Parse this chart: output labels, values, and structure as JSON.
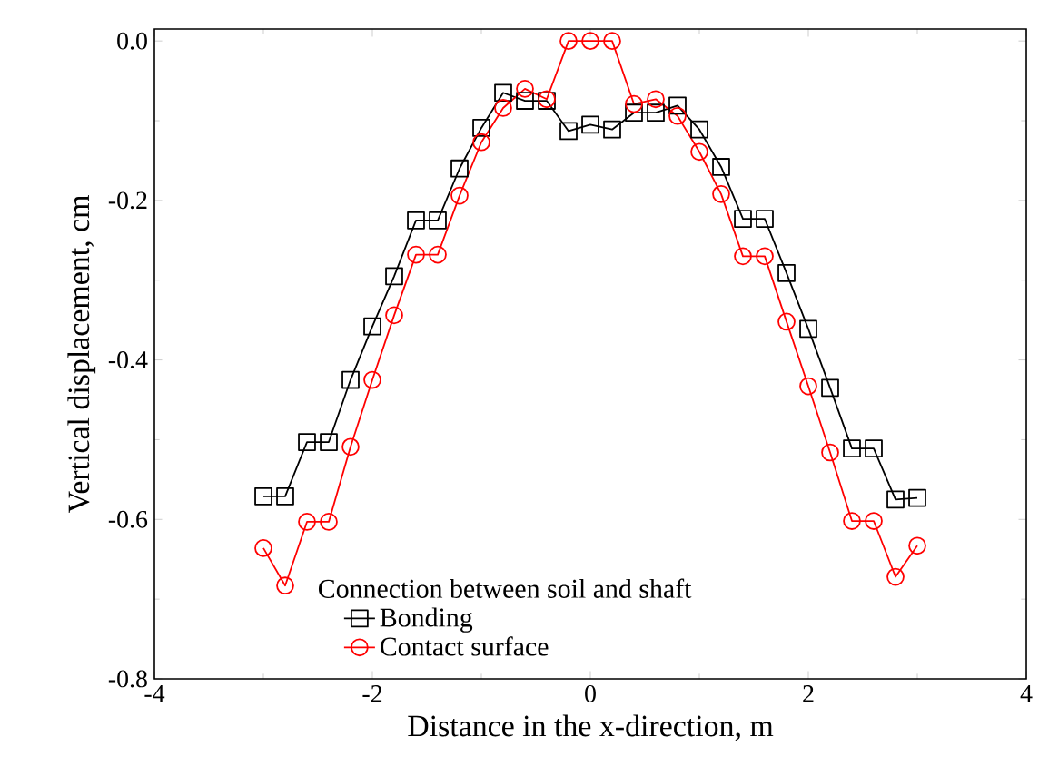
{
  "chart_data": {
    "type": "line",
    "xlabel": "Distance in the x-direction, m",
    "ylabel": "Vertical displacement, cm",
    "legend_title": "Connection between soil and shaft",
    "legend": "bottom",
    "line_style": "solid",
    "x": [
      -3,
      -2.8,
      -2.6,
      -2.4,
      -2.2,
      -2,
      -1.8,
      -1.6,
      -1.4,
      -1.2,
      -1,
      -0.8,
      -0.6,
      -0.4,
      -0.2,
      0,
      0.2,
      0.4,
      0.6,
      0.8,
      1,
      1.2,
      1.4,
      1.6,
      1.8,
      2,
      2.2,
      2.4,
      2.6,
      2.8,
      3
    ],
    "xlim": [
      -4,
      4
    ],
    "xticks": [
      -4,
      -2,
      0,
      2,
      4
    ],
    "ylim": [
      -0.8,
      0.015
    ],
    "yticks": [
      {
        "value": -0.8,
        "label": "-0.8"
      },
      {
        "value": -0.6,
        "label": "-0.6"
      },
      {
        "value": -0.4,
        "label": "-0.4"
      },
      {
        "value": -0.2,
        "label": "-0.2"
      },
      {
        "value": 0,
        "label": "0.0"
      }
    ],
    "series": [
      {
        "name": "Bonding",
        "color": "#000000",
        "marker": "square",
        "values": [
          -0.571,
          -0.571,
          -0.503,
          -0.503,
          -0.425,
          -0.358,
          -0.295,
          -0.225,
          -0.225,
          -0.16,
          -0.109,
          -0.065,
          -0.075,
          -0.075,
          -0.113,
          -0.105,
          -0.111,
          -0.09,
          -0.09,
          -0.081,
          -0.111,
          -0.158,
          -0.223,
          -0.223,
          -0.291,
          -0.361,
          -0.435,
          -0.511,
          -0.511,
          -0.575,
          -0.573
        ]
      },
      {
        "name": "Contact surface",
        "color": "#ff0000",
        "marker": "circle",
        "values": [
          -0.636,
          -0.683,
          -0.603,
          -0.603,
          -0.509,
          -0.425,
          -0.344,
          -0.268,
          -0.268,
          -0.194,
          -0.127,
          -0.084,
          -0.06,
          -0.073,
          0,
          0,
          0,
          -0.079,
          -0.073,
          -0.094,
          -0.139,
          -0.192,
          -0.27,
          -0.27,
          -0.352,
          -0.433,
          -0.516,
          -0.602,
          -0.602,
          -0.672,
          -0.633
        ]
      }
    ]
  }
}
